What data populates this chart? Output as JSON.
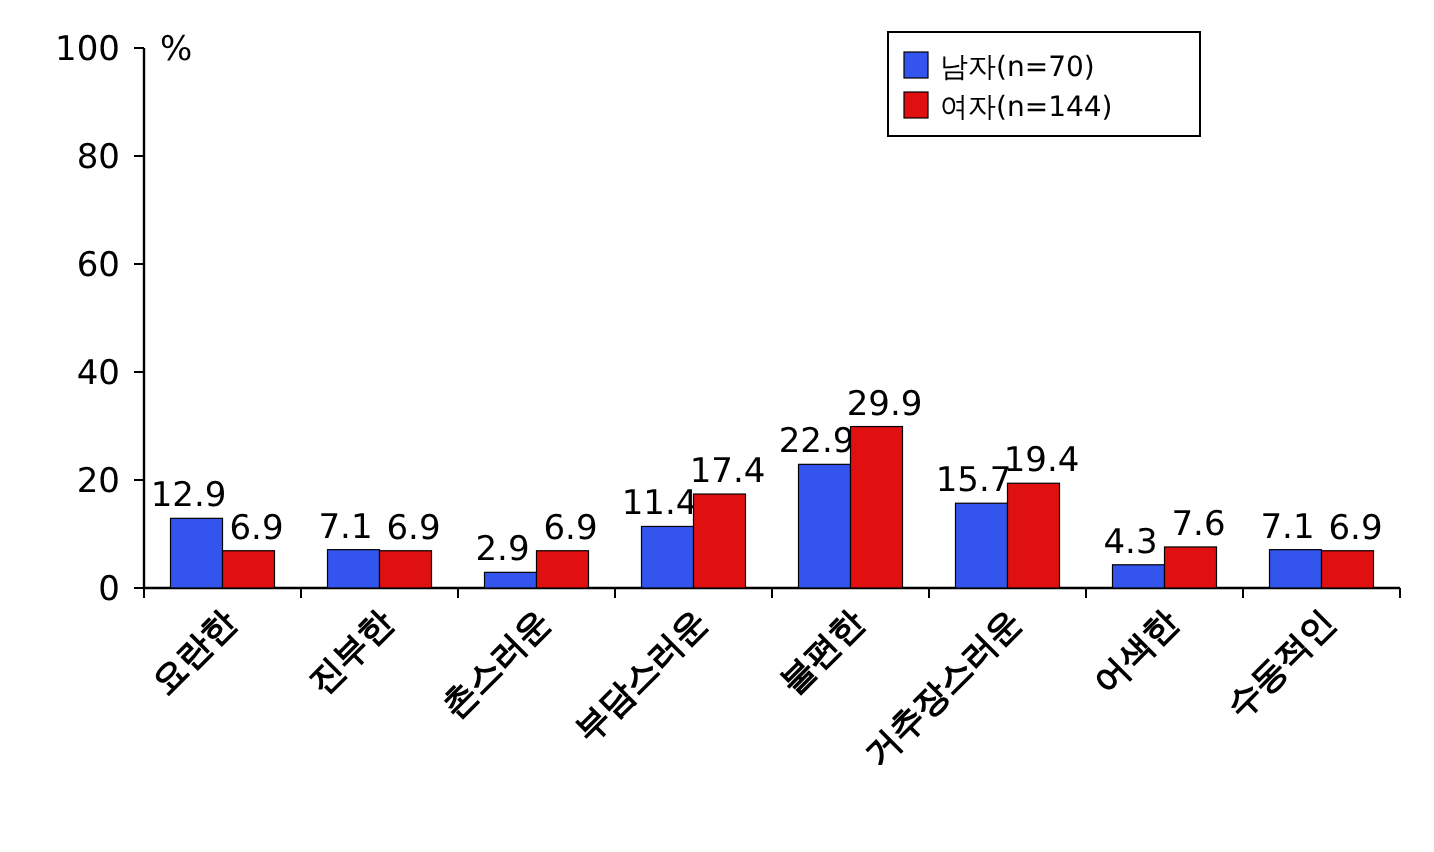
{
  "chart_data": {
    "type": "bar",
    "ylabel": "%",
    "categories": [
      "요란한",
      "진부한",
      "촌스러운",
      "부담스러운",
      "불편한",
      "거추장스러운",
      "어색한",
      "수동적인"
    ],
    "series": [
      {
        "name": "남자(n=70)",
        "color": "#3355ee",
        "values": [
          12.9,
          7.1,
          2.9,
          11.4,
          22.9,
          15.7,
          4.3,
          7.1
        ]
      },
      {
        "name": "여자(n=144)",
        "color": "#e01010",
        "values": [
          6.9,
          6.9,
          6.9,
          17.4,
          29.9,
          19.4,
          7.6,
          6.9
        ]
      }
    ],
    "ylim": [
      0,
      100
    ],
    "yticks": [
      0,
      20,
      40,
      60,
      80,
      100
    ],
    "data_labels": true,
    "legend": "top right",
    "grid": false
  }
}
